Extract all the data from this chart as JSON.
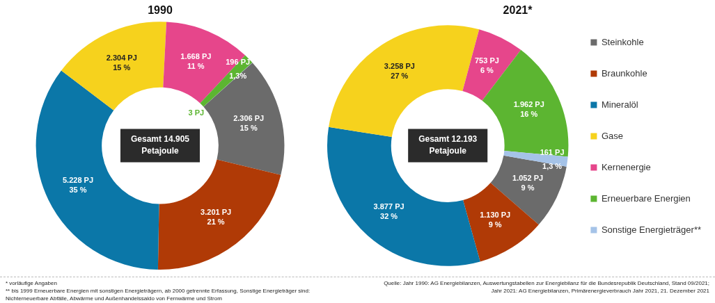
{
  "chart_data": [
    {
      "type": "donut",
      "title": "1990",
      "categories": [
        null,
        null,
        null,
        null,
        null,
        null,
        null
      ],
      "values": [
        2306,
        3201,
        5228,
        2304,
        1668,
        196,
        3
      ],
      "colors": [
        "#6b6b6b",
        "#b03a06",
        "#0b77a8",
        "#f6d21d",
        "#e6468b",
        "#5cb531",
        "#a5c3e8"
      ],
      "value_labels": [
        "2.306 PJ\n15 %",
        "3.201 PJ\n21 %",
        "5.228 PJ\n35 %",
        "2.304 PJ\n15 %",
        "1.668 PJ\n11 %",
        "196 PJ\n1,3%",
        "3 PJ"
      ],
      "annotations": [
        "Gesamt 14.905\nPetajoule",
        "* vorläufige Angaben",
        "** bis 1999 Erneuerbare Energien mit sonstigen Energieträgern, ab 2000 getrennte Erfassung, Sonstige Energieträger sind: Nichterneuerbare Abfälle, Abwärme und Außenhandelssaldo von Fernwärme und Strom"
      ]
    },
    {
      "type": "donut",
      "title": "2021*",
      "categories": [
        "Steinkohle",
        "Braunkohle",
        "Mineralöl",
        "Gase",
        "Kernenergie",
        "Erneuerbare Energien",
        "Sonstige Energieträger**"
      ],
      "values": [
        1052,
        1130,
        3877,
        3258,
        753,
        1962,
        161
      ],
      "colors": [
        "#6b6b6b",
        "#b03a06",
        "#0b77a8",
        "#f6d21d",
        "#e6468b",
        "#5cb531",
        "#a5c3e8"
      ],
      "value_labels": [
        "1.052 PJ\n9 %",
        "1.130 PJ\n9 %",
        "3.877 PJ\n32 %",
        "3.258 PJ\n27 %",
        "753 PJ\n6 %",
        "1.962 PJ\n16 %",
        "161 PJ\n1,3 %"
      ],
      "legend": "right",
      "annotations": [
        "Gesamt 12.193\nPetajoule",
        "Quelle: Jahr 1990: AG Energiebilanzen, Auswertungstabellen zur Energiebilanz für die Bundesrepublik Deutschland, Stand 09/2021; Jahr 2021: AG Energiebilanzen, Primärenergieverbrauch Jahr 2021, 21. Dezember 2021"
      ]
    }
  ]
}
